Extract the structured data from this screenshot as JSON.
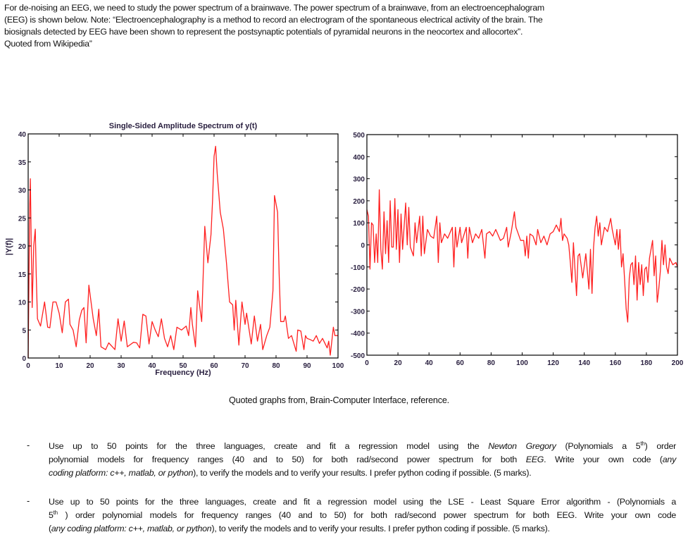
{
  "intro_lines": [
    "For de-noising an EEG, we need to study the power spectrum of a brainwave.  The power spectrum of a brainwave, from  an electroencephalogram",
    "(EEG)  is shown below. Note: “Electroencephalography is a method to record an electrogram of the spontaneous electrical activity of the brain. The",
    "biosignals detected by EEG have been shown to represent the postsynaptic potentials of pyramidal neurons in the neocortex and allocortex”.",
    "Quoted from Wikipedia”"
  ],
  "caption": "Quoted graphs from,  Brain-Computer Interface, reference.",
  "bullets": [
    {
      "marker": "-",
      "lines": [
        [
          "Use up to 50 points for the three languages, create and fit a regression model using the ",
          {
            "i": "Newton Gregory"
          },
          " (Polynomials a 5",
          {
            "sup": "th"
          },
          ") order"
        ],
        [
          "polynomial models for frequency ranges (40 and to 50) for both rad/second power spectrum for both ",
          {
            "i": "EEG"
          },
          ". Write your own code (",
          {
            "i": "any"
          }
        ],
        [
          {
            "i": "coding platform: c++, matlab, or python"
          },
          "), to verify the models and to verify your results.  I prefer python coding if possible.  (5 marks)."
        ]
      ]
    },
    {
      "marker": "-",
      "lines": [
        [
          "Use up to 50 points for the three languages, create and fit a regression model using the LSE - Least Square Error algorithm - (Polynomials a"
        ],
        [
          "5",
          {
            "sup": "th"
          },
          " ) order polynomial models for frequency ranges (40 and to 50) for both rad/second power spectrum for both EEG. Write your own code"
        ],
        [
          "(",
          {
            "i": "any coding platform: c++, matlab, or python"
          },
          "), to verify the models and to verify your results.  I prefer python coding if possible.  (5 marks)."
        ]
      ]
    }
  ],
  "colors": {
    "line": "#ff2020",
    "axis": "#000000",
    "tick_text": "#2a2040"
  },
  "chart_data": [
    {
      "type": "line",
      "title": "Single-Sided Amplitude Spectrum of y(t)",
      "xlabel": "Frequency (Hz)",
      "ylabel": "|Y(f)|",
      "xlim": [
        0,
        100
      ],
      "ylim": [
        0,
        40
      ],
      "xticks": [
        0,
        10,
        20,
        30,
        40,
        50,
        60,
        70,
        80,
        90,
        100
      ],
      "yticks": [
        0,
        5,
        10,
        15,
        20,
        25,
        30,
        35,
        40
      ],
      "grid": false,
      "points": [
        [
          0,
          0
        ],
        [
          0.3,
          16
        ],
        [
          0.5,
          27
        ],
        [
          0.7,
          32
        ],
        [
          1,
          20
        ],
        [
          1.3,
          9
        ],
        [
          1.8,
          20
        ],
        [
          2.3,
          23
        ],
        [
          2.6,
          15
        ],
        [
          3,
          7
        ],
        [
          4,
          5.7
        ],
        [
          5.3,
          10
        ],
        [
          6.3,
          5.5
        ],
        [
          7,
          5.4
        ],
        [
          8,
          10
        ],
        [
          9,
          10
        ],
        [
          10,
          8
        ],
        [
          11,
          4.5
        ],
        [
          12,
          10
        ],
        [
          13,
          10.5
        ],
        [
          13.5,
          6
        ],
        [
          14.5,
          5
        ],
        [
          15.5,
          2
        ],
        [
          16.5,
          6.8
        ],
        [
          17.3,
          8.5
        ],
        [
          18,
          9
        ],
        [
          18.7,
          2.7
        ],
        [
          19.6,
          13
        ],
        [
          21,
          7
        ],
        [
          22,
          4
        ],
        [
          22.8,
          8.7
        ],
        [
          23.5,
          2
        ],
        [
          25,
          1.5
        ],
        [
          26,
          2.7
        ],
        [
          28,
          1.5
        ],
        [
          29,
          7
        ],
        [
          30,
          3
        ],
        [
          31,
          6.6
        ],
        [
          32,
          2
        ],
        [
          34,
          2.8
        ],
        [
          35,
          2.7
        ],
        [
          36,
          1.8
        ],
        [
          37,
          7.8
        ],
        [
          38,
          7.5
        ],
        [
          39,
          2.5
        ],
        [
          40,
          6.5
        ],
        [
          41,
          5
        ],
        [
          42,
          3.8
        ],
        [
          43,
          7
        ],
        [
          44,
          3.5
        ],
        [
          45,
          2
        ],
        [
          46,
          4
        ],
        [
          47,
          1.5
        ],
        [
          48,
          5.5
        ],
        [
          49.5,
          5
        ],
        [
          51,
          5.7
        ],
        [
          51.8,
          4
        ],
        [
          52.5,
          9
        ],
        [
          53,
          6
        ],
        [
          54,
          2
        ],
        [
          54.7,
          12
        ],
        [
          56,
          6.5
        ],
        [
          57,
          23.5
        ],
        [
          58,
          17
        ],
        [
          59,
          22
        ],
        [
          59.5,
          28
        ],
        [
          60,
          36
        ],
        [
          60.5,
          37.8
        ],
        [
          61,
          33
        ],
        [
          62,
          26
        ],
        [
          63,
          23
        ],
        [
          64,
          17
        ],
        [
          65,
          10
        ],
        [
          66,
          9.5
        ],
        [
          66.5,
          5
        ],
        [
          67,
          10.3
        ],
        [
          68,
          2.3
        ],
        [
          69,
          10
        ],
        [
          70,
          6
        ],
        [
          70.5,
          8
        ],
        [
          72,
          2.5
        ],
        [
          73,
          7.5
        ],
        [
          74,
          3
        ],
        [
          75,
          6
        ],
        [
          75.7,
          1.5
        ],
        [
          77,
          4
        ],
        [
          78,
          5.5
        ],
        [
          79,
          12
        ],
        [
          79.5,
          29
        ],
        [
          80.5,
          26
        ],
        [
          81,
          15
        ],
        [
          81.5,
          6.5
        ],
        [
          82.5,
          6.5
        ],
        [
          83,
          7.5
        ],
        [
          84,
          3.5
        ],
        [
          85,
          4
        ],
        [
          86.5,
          1.2
        ],
        [
          87,
          5
        ],
        [
          88,
          4.8
        ],
        [
          89,
          1.5
        ],
        [
          89.5,
          4
        ],
        [
          90,
          3.5
        ],
        [
          91,
          3.3
        ],
        [
          92,
          3
        ],
        [
          93,
          4
        ],
        [
          94,
          2.6
        ],
        [
          95,
          3.5
        ],
        [
          96.5,
          1.8
        ],
        [
          97,
          3
        ],
        [
          97.5,
          0.5
        ],
        [
          98.5,
          5.5
        ],
        [
          99,
          4
        ],
        [
          100,
          4
        ]
      ]
    },
    {
      "type": "line",
      "title": "",
      "xlabel": "",
      "ylabel": "",
      "xlim": [
        0,
        200
      ],
      "ylim": [
        -500,
        500
      ],
      "xticks": [
        0,
        20,
        40,
        60,
        80,
        100,
        120,
        140,
        160,
        180,
        200
      ],
      "yticks": [
        -500,
        -400,
        -300,
        -200,
        -100,
        0,
        100,
        200,
        300,
        400,
        500
      ],
      "grid": false,
      "points": [
        [
          0,
          160
        ],
        [
          1,
          130
        ],
        [
          2,
          -110
        ],
        [
          3,
          100
        ],
        [
          4,
          90
        ],
        [
          5,
          -80
        ],
        [
          6,
          50
        ],
        [
          7,
          -80
        ],
        [
          8,
          250
        ],
        [
          9,
          -20
        ],
        [
          10,
          -110
        ],
        [
          11,
          150
        ],
        [
          12,
          -40
        ],
        [
          13,
          110
        ],
        [
          14,
          -80
        ],
        [
          15,
          200
        ],
        [
          16,
          -10
        ],
        [
          17,
          -10
        ],
        [
          18,
          210
        ],
        [
          19,
          -20
        ],
        [
          20,
          160
        ],
        [
          21,
          -80
        ],
        [
          22,
          140
        ],
        [
          23,
          -20
        ],
        [
          25,
          190
        ],
        [
          26,
          0
        ],
        [
          27,
          170
        ],
        [
          28,
          -10
        ],
        [
          30,
          -50
        ],
        [
          31,
          100
        ],
        [
          32,
          10
        ],
        [
          34,
          130
        ],
        [
          35,
          -50
        ],
        [
          36,
          130
        ],
        [
          37,
          -40
        ],
        [
          39,
          70
        ],
        [
          41,
          40
        ],
        [
          43,
          30
        ],
        [
          45,
          130
        ],
        [
          46,
          -80
        ],
        [
          47,
          100
        ],
        [
          48,
          10
        ],
        [
          50,
          50
        ],
        [
          52,
          30
        ],
        [
          55,
          80
        ],
        [
          56,
          -100
        ],
        [
          57,
          80
        ],
        [
          58,
          -10
        ],
        [
          60,
          80
        ],
        [
          61,
          10
        ],
        [
          64,
          80
        ],
        [
          65,
          -60
        ],
        [
          66,
          80
        ],
        [
          68,
          10
        ],
        [
          70,
          50
        ],
        [
          72,
          30
        ],
        [
          74,
          70
        ],
        [
          76,
          -60
        ],
        [
          77,
          50
        ],
        [
          79,
          60
        ],
        [
          81,
          40
        ],
        [
          83,
          70
        ],
        [
          86,
          20
        ],
        [
          88,
          30
        ],
        [
          90,
          80
        ],
        [
          91,
          -10
        ],
        [
          93,
          60
        ],
        [
          95,
          150
        ],
        [
          96,
          80
        ],
        [
          97,
          60
        ],
        [
          99,
          20
        ],
        [
          101,
          20
        ],
        [
          102,
          -50
        ],
        [
          103,
          40
        ],
        [
          104,
          -60
        ],
        [
          105,
          50
        ],
        [
          107,
          40
        ],
        [
          109,
          0
        ],
        [
          110,
          70
        ],
        [
          112,
          10
        ],
        [
          114,
          40
        ],
        [
          116,
          0
        ],
        [
          118,
          50
        ],
        [
          120,
          60
        ],
        [
          122,
          90
        ],
        [
          124,
          60
        ],
        [
          125,
          120
        ],
        [
          126,
          20
        ],
        [
          127,
          50
        ],
        [
          129,
          30
        ],
        [
          130,
          0
        ],
        [
          131,
          -80
        ],
        [
          132,
          -170
        ],
        [
          133,
          10
        ],
        [
          135,
          -230
        ],
        [
          136,
          -50
        ],
        [
          137,
          -40
        ],
        [
          139,
          -150
        ],
        [
          141,
          -40
        ],
        [
          143,
          -200
        ],
        [
          144,
          -20
        ],
        [
          145,
          -220
        ],
        [
          146,
          -10
        ],
        [
          147,
          80
        ],
        [
          148,
          130
        ],
        [
          149,
          40
        ],
        [
          150,
          100
        ],
        [
          151,
          0
        ],
        [
          153,
          80
        ],
        [
          155,
          60
        ],
        [
          157,
          120
        ],
        [
          158,
          70
        ],
        [
          160,
          0
        ],
        [
          161,
          70
        ],
        [
          162,
          -20
        ],
        [
          163,
          70
        ],
        [
          164,
          -100
        ],
        [
          165,
          -40
        ],
        [
          166,
          -160
        ],
        [
          167,
          -290
        ],
        [
          168,
          -350
        ],
        [
          169,
          -150
        ],
        [
          170,
          -90
        ],
        [
          171,
          -80
        ],
        [
          172,
          -180
        ],
        [
          173,
          -50
        ],
        [
          174,
          -250
        ],
        [
          175,
          -80
        ],
        [
          176,
          -180
        ],
        [
          177,
          -90
        ],
        [
          178,
          -230
        ],
        [
          179,
          -110
        ],
        [
          180,
          -100
        ],
        [
          181,
          -170
        ],
        [
          182,
          -60
        ],
        [
          184,
          20
        ],
        [
          185,
          -140
        ],
        [
          186,
          -50
        ],
        [
          187,
          -260
        ],
        [
          188,
          -200
        ],
        [
          189,
          -120
        ],
        [
          190,
          20
        ],
        [
          191,
          -90
        ],
        [
          192,
          0
        ],
        [
          193,
          -100
        ],
        [
          194,
          -130
        ],
        [
          195,
          -60
        ],
        [
          197,
          -90
        ],
        [
          199,
          -80
        ],
        [
          200,
          -100
        ]
      ]
    }
  ]
}
